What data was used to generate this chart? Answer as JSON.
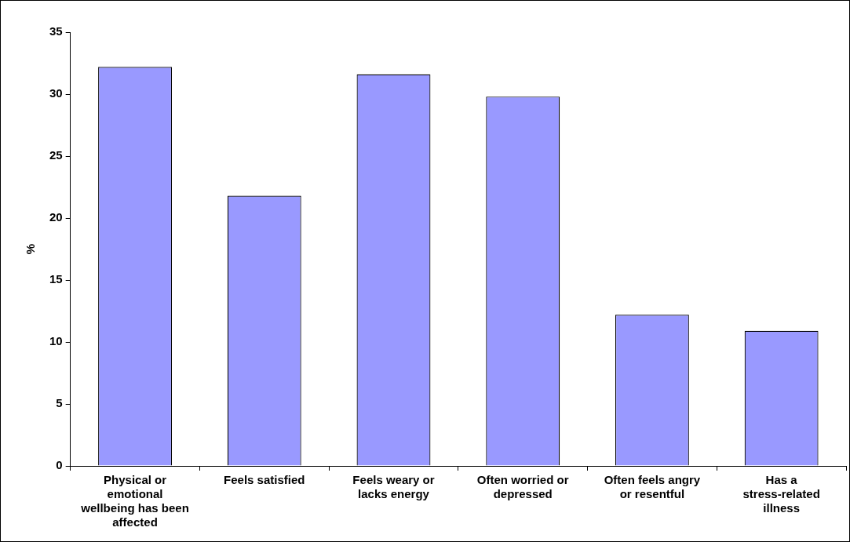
{
  "chart_data": {
    "type": "bar",
    "ylabel": "%",
    "categories": [
      "Physical or emotional wellbeing has been affected",
      "Feels satisfied",
      "Feels weary or lacks energy",
      "Often worried or depressed",
      "Often feels angry or resentful",
      "Has a stress-related illness"
    ],
    "values": [
      32.2,
      21.8,
      31.6,
      29.8,
      12.2,
      10.9
    ],
    "color": "#9999ff",
    "ylim": [
      0,
      35
    ],
    "yticks": [
      0,
      5,
      10,
      15,
      20,
      25,
      30,
      35
    ],
    "grid": false,
    "legend": false
  }
}
